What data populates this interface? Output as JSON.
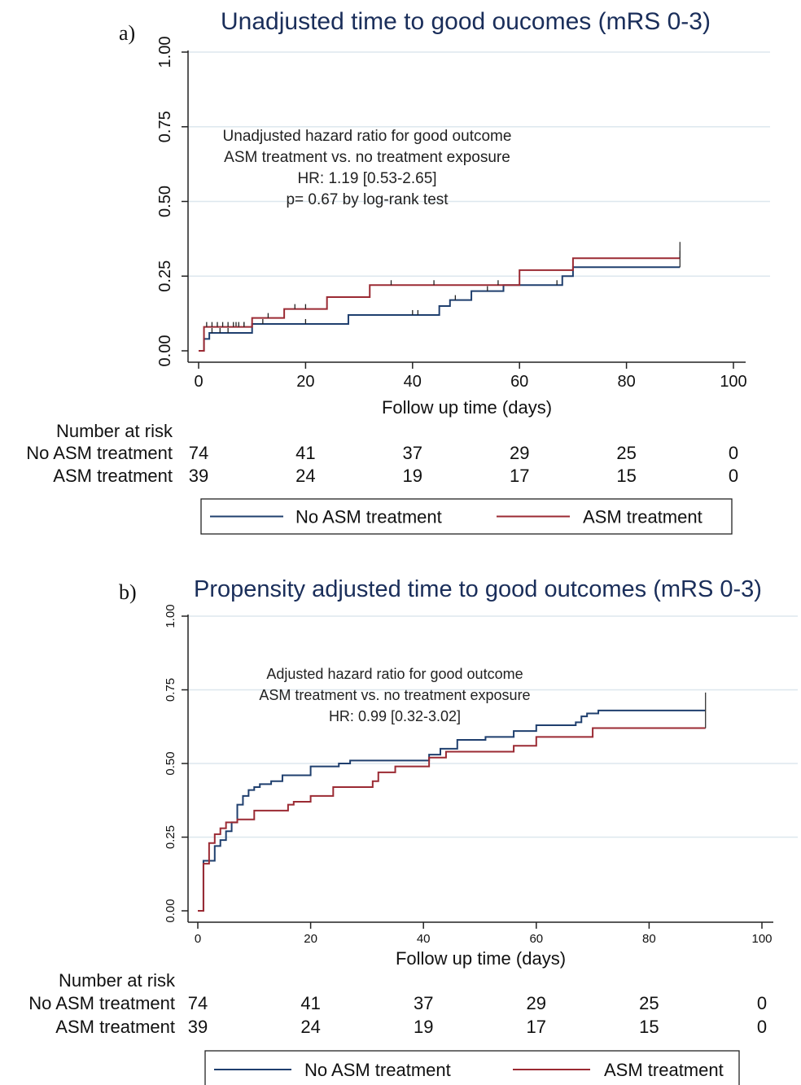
{
  "chart_data": [
    {
      "panel_label": "a)",
      "type": "line",
      "step": true,
      "title": "Unadjusted time to good oucomes (mRS 0-3)",
      "xlabel": "Follow up time (days)",
      "ylabel": "",
      "xlim": [
        0,
        100
      ],
      "ylim": [
        0,
        1
      ],
      "x_ticks": [
        "0",
        "20",
        "40",
        "60",
        "80",
        "100"
      ],
      "y_ticks": [
        "0.00",
        "0.25",
        "0.50",
        "0.75",
        "1.00"
      ],
      "grid": true,
      "annotation": [
        "Unadjusted hazard ratio for good outcome",
        "ASM treatment vs. no treatment exposure",
        "HR: 1.19 [0.53-2.65]",
        "p= 0.67 by log-rank test"
      ],
      "series": [
        {
          "name": "No ASM treatment",
          "color": "#1f3f6e",
          "x": [
            0,
            1,
            2,
            3,
            10,
            28,
            45,
            47,
            51,
            57,
            60,
            68,
            70,
            90
          ],
          "y": [
            0,
            0.04,
            0.06,
            0.06,
            0.09,
            0.12,
            0.15,
            0.17,
            0.2,
            0.22,
            0.22,
            0.25,
            0.28,
            0.28
          ],
          "censor_x": [
            2.5,
            4,
            5.5,
            7,
            8.5,
            12,
            20,
            40,
            41,
            48,
            54,
            67,
            90
          ],
          "censor_y": [
            0.06,
            0.06,
            0.06,
            0.08,
            0.08,
            0.09,
            0.09,
            0.12,
            0.12,
            0.17,
            0.2,
            0.22,
            0.28
          ]
        },
        {
          "name": "ASM treatment",
          "color": "#9b2a33",
          "x": [
            0,
            1,
            10,
            16,
            24,
            32,
            57,
            60,
            70,
            90
          ],
          "y": [
            0,
            0.08,
            0.11,
            0.14,
            0.18,
            0.22,
            0.22,
            0.27,
            0.31,
            0.31
          ],
          "censor_x": [
            1.5,
            2.5,
            3.5,
            4.5,
            5.5,
            6.5,
            7.5,
            8.5,
            13,
            18,
            20,
            36,
            44,
            56,
            90
          ],
          "censor_y": [
            0.08,
            0.08,
            0.08,
            0.08,
            0.08,
            0.08,
            0.08,
            0.08,
            0.11,
            0.14,
            0.14,
            0.22,
            0.22,
            0.22,
            0.31
          ]
        }
      ],
      "risk_table": {
        "header": "Number at risk",
        "rows": [
          {
            "label": "No ASM treatment",
            "values": [
              "74",
              "41",
              "37",
              "29",
              "25",
              "0"
            ]
          },
          {
            "label": "ASM treatment",
            "values": [
              "39",
              "24",
              "19",
              "17",
              "15",
              "0"
            ]
          }
        ]
      },
      "legend": [
        "No ASM treatment",
        "ASM treatment"
      ],
      "legend_position": "bottom"
    },
    {
      "panel_label": "b)",
      "type": "line",
      "step": true,
      "title": "Propensity adjusted time to good outcomes (mRS 0-3)",
      "xlabel": "Follow up time (days)",
      "ylabel": "",
      "xlim": [
        0,
        100
      ],
      "ylim": [
        0,
        1
      ],
      "x_ticks": [
        "0",
        "20",
        "40",
        "60",
        "80",
        "100"
      ],
      "y_ticks": [
        "0.00",
        "0.25",
        "0.50",
        "0.75",
        "1.00"
      ],
      "grid": true,
      "annotation": [
        "Adjusted hazard ratio for good outcome",
        "ASM treatment vs. no treatment exposure",
        "HR: 0.99 [0.32-3.02]"
      ],
      "series": [
        {
          "name": "No ASM treatment",
          "color": "#1f3f6e",
          "x": [
            0,
            1,
            3,
            4,
            5,
            6,
            7,
            8,
            9,
            10,
            11,
            13,
            15,
            20,
            25,
            27,
            32,
            41,
            43,
            46,
            51,
            56,
            60,
            67,
            68,
            69,
            70,
            71,
            90
          ],
          "y": [
            0,
            0.17,
            0.22,
            0.24,
            0.27,
            0.3,
            0.36,
            0.39,
            0.41,
            0.42,
            0.43,
            0.44,
            0.46,
            0.49,
            0.5,
            0.51,
            0.51,
            0.53,
            0.55,
            0.58,
            0.59,
            0.61,
            0.63,
            0.64,
            0.66,
            0.67,
            0.67,
            0.68,
            0.68
          ],
          "censor_x": [
            90
          ],
          "censor_y": [
            0.68
          ]
        },
        {
          "name": "ASM treatment",
          "color": "#9b2a33",
          "x": [
            0,
            1,
            2,
            3,
            4,
            5,
            7,
            10,
            16,
            17,
            20,
            24,
            31,
            32,
            35,
            41,
            44,
            56,
            60,
            70,
            90
          ],
          "y": [
            0,
            0.16,
            0.23,
            0.26,
            0.28,
            0.3,
            0.31,
            0.34,
            0.36,
            0.37,
            0.39,
            0.42,
            0.44,
            0.47,
            0.49,
            0.52,
            0.54,
            0.56,
            0.59,
            0.62,
            0.62
          ],
          "censor_x": [
            90
          ],
          "censor_y": [
            0.62
          ]
        }
      ],
      "risk_table": {
        "header": "Number at risk",
        "rows": [
          {
            "label": "No ASM treatment",
            "values": [
              "74",
              "41",
              "37",
              "29",
              "25",
              "0"
            ]
          },
          {
            "label": "ASM treatment",
            "values": [
              "39",
              "24",
              "19",
              "17",
              "15",
              "0"
            ]
          }
        ]
      },
      "legend": [
        "No ASM treatment",
        "ASM treatment"
      ],
      "legend_position": "bottom"
    }
  ]
}
